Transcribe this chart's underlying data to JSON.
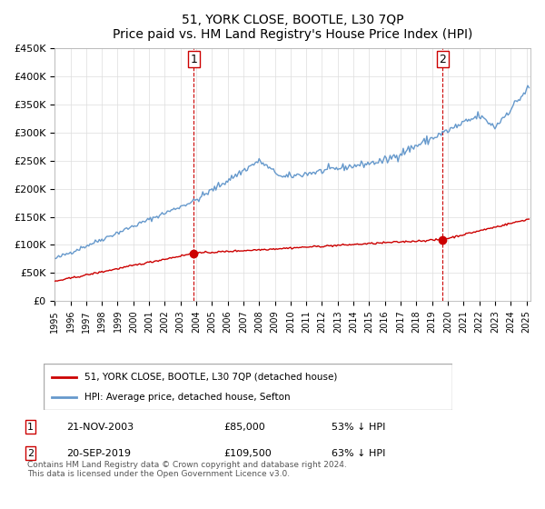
{
  "title": "51, YORK CLOSE, BOOTLE, L30 7QP",
  "subtitle": "Price paid vs. HM Land Registry's House Price Index (HPI)",
  "hpi_color": "#6699cc",
  "price_color": "#cc0000",
  "vline_color": "#cc0000",
  "marker_color": "#cc0000",
  "ylim": [
    0,
    450000
  ],
  "yticks": [
    0,
    50000,
    100000,
    150000,
    200000,
    250000,
    300000,
    350000,
    400000,
    450000
  ],
  "ytick_labels": [
    "£0",
    "£50K",
    "£100K",
    "£150K",
    "£200K",
    "£250K",
    "£300K",
    "£350K",
    "£400K",
    "£450K"
  ],
  "legend_label_red": "51, YORK CLOSE, BOOTLE, L30 7QP (detached house)",
  "legend_label_blue": "HPI: Average price, detached house, Sefton",
  "sale1_date": "21-NOV-2003",
  "sale1_price": 85000,
  "sale1_pct": "53% ↓ HPI",
  "sale2_date": "20-SEP-2019",
  "sale2_price": 109500,
  "sale2_pct": "63% ↓ HPI",
  "footnote": "Contains HM Land Registry data © Crown copyright and database right 2024.\nThis data is licensed under the Open Government Licence v3.0.",
  "xstart_year": 1995,
  "xend_year": 2025
}
